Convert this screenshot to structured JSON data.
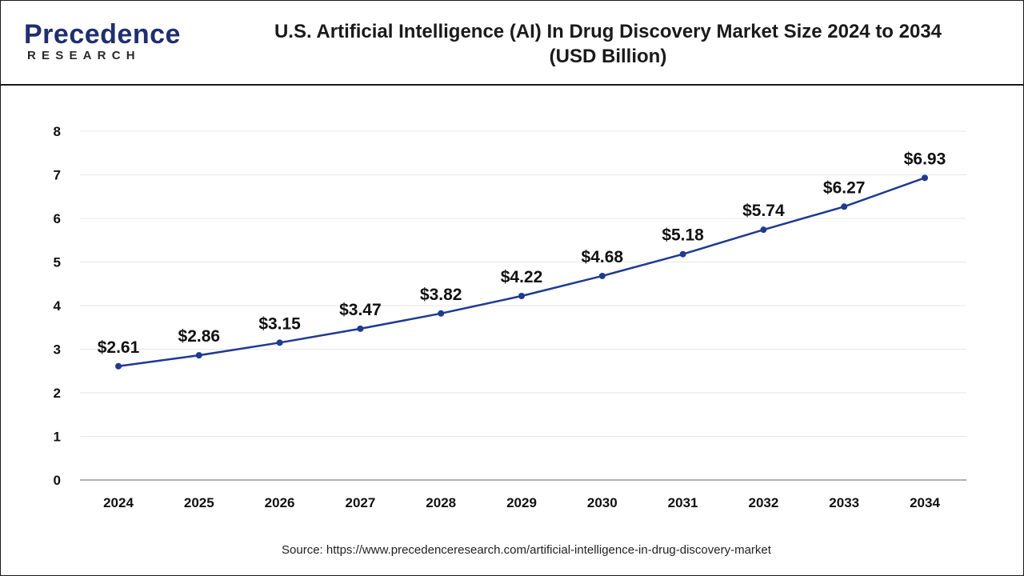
{
  "brand": {
    "logo_main": "Precedence",
    "logo_sub": "RESEARCH"
  },
  "header": {
    "title_line1": "U.S. Artificial Intelligence (AI) In Drug Discovery Market Size 2024 to 2034",
    "title_line2": "(USD Billion)"
  },
  "footer": {
    "source": "Source: https://www.precedenceresearch.com/artificial-intelligence-in-drug-discovery-market"
  },
  "colors": {
    "line": "#1f3a8f",
    "grid": "#e6e6e6",
    "axis": "#999999",
    "text": "#111111"
  },
  "chart_data": {
    "type": "line",
    "title": "U.S. Artificial Intelligence (AI) In Drug Discovery Market Size 2024 to 2034 (USD Billion)",
    "xlabel": "",
    "ylabel": "",
    "categories": [
      "2024",
      "2025",
      "2026",
      "2027",
      "2028",
      "2029",
      "2030",
      "2031",
      "2032",
      "2033",
      "2034"
    ],
    "values": [
      2.61,
      2.86,
      3.15,
      3.47,
      3.82,
      4.22,
      4.68,
      5.18,
      5.74,
      6.27,
      6.93
    ],
    "data_labels": [
      "$2.61",
      "$2.86",
      "$3.15",
      "$3.47",
      "$3.82",
      "$4.22",
      "$4.68",
      "$5.18",
      "$5.74",
      "$6.27",
      "$6.93"
    ],
    "yticks": [
      0,
      1,
      2,
      3,
      4,
      5,
      6,
      7,
      8
    ],
    "ylim": [
      0,
      8
    ],
    "grid": true,
    "legend": "none"
  }
}
